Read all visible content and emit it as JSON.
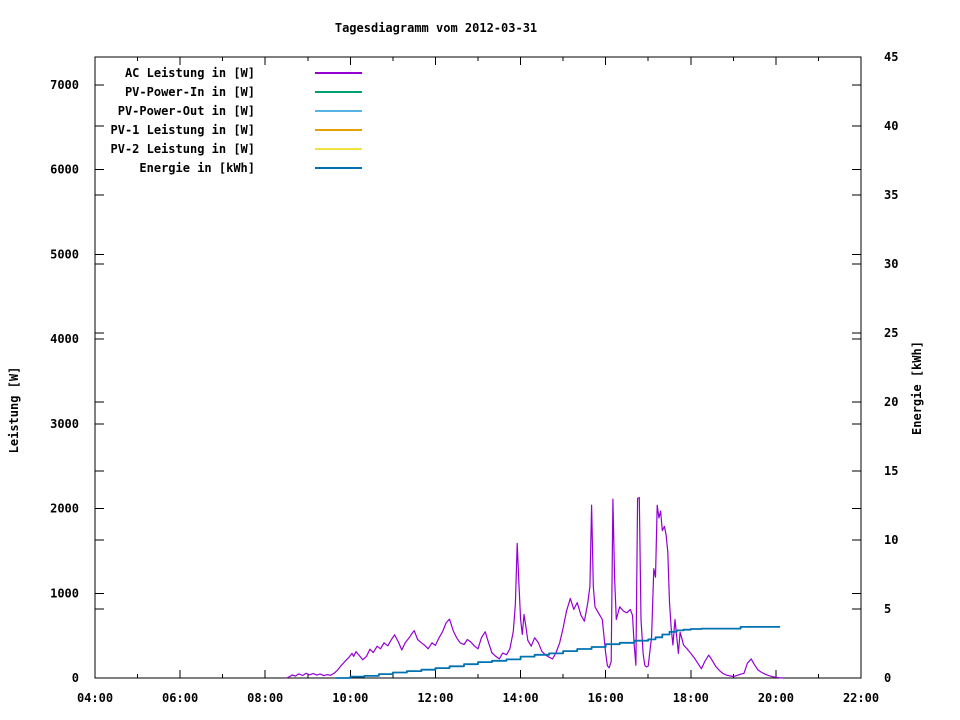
{
  "chart_data": {
    "type": "line",
    "title": "Tagesdiagramm vom 2012-03-31",
    "grid": false,
    "legend_position": "top-left-inside",
    "x_axis": {
      "label": "",
      "range_hours": [
        4,
        22
      ],
      "major_tick_hours": [
        4,
        6,
        8,
        10,
        12,
        14,
        16,
        18,
        20,
        22
      ],
      "major_tick_labels": [
        "04:00",
        "06:00",
        "08:00",
        "10:00",
        "12:00",
        "14:00",
        "16:00",
        "18:00",
        "20:00",
        "22:00"
      ],
      "minor_tick_hours": [
        5,
        7,
        9,
        11,
        13,
        15,
        17,
        19,
        21
      ]
    },
    "y1_axis": {
      "label": "Leistung [W]",
      "range": [
        0,
        7330
      ],
      "tick_values": [
        0,
        1000,
        2000,
        3000,
        4000,
        5000,
        6000,
        7000
      ],
      "tick_labels": [
        "0",
        "1000",
        "2000",
        "3000",
        "4000",
        "5000",
        "6000",
        "7000"
      ]
    },
    "y2_axis": {
      "label": "Energie [kWh]",
      "range": [
        0,
        45
      ],
      "tick_values": [
        0,
        5,
        10,
        15,
        20,
        25,
        30,
        35,
        40,
        45
      ],
      "tick_labels": [
        "0",
        "5",
        "10",
        "15",
        "20",
        "25",
        "30",
        "35",
        "40",
        "45"
      ]
    },
    "series": [
      {
        "name": "AC Leistung in [W]",
        "color": "#9400d3",
        "axis": "y1",
        "style": "line",
        "width": 1.2,
        "points": [
          [
            8.5,
            0
          ],
          [
            8.58,
            18
          ],
          [
            8.63,
            35
          ],
          [
            8.71,
            22
          ],
          [
            8.79,
            48
          ],
          [
            8.88,
            30
          ],
          [
            8.96,
            55
          ],
          [
            9.04,
            38
          ],
          [
            9.13,
            52
          ],
          [
            9.21,
            34
          ],
          [
            9.29,
            46
          ],
          [
            9.38,
            28
          ],
          [
            9.46,
            40
          ],
          [
            9.54,
            32
          ],
          [
            9.63,
            60
          ],
          [
            9.71,
            100
          ],
          [
            9.79,
            150
          ],
          [
            9.88,
            200
          ],
          [
            9.96,
            240
          ],
          [
            10.04,
            290
          ],
          [
            10.08,
            255
          ],
          [
            10.13,
            310
          ],
          [
            10.21,
            265
          ],
          [
            10.29,
            215
          ],
          [
            10.38,
            255
          ],
          [
            10.46,
            340
          ],
          [
            10.54,
            300
          ],
          [
            10.63,
            375
          ],
          [
            10.71,
            345
          ],
          [
            10.79,
            415
          ],
          [
            10.88,
            380
          ],
          [
            10.96,
            450
          ],
          [
            11.04,
            510
          ],
          [
            11.13,
            425
          ],
          [
            11.21,
            330
          ],
          [
            11.29,
            415
          ],
          [
            11.38,
            475
          ],
          [
            11.46,
            535
          ],
          [
            11.5,
            560
          ],
          [
            11.58,
            455
          ],
          [
            11.67,
            415
          ],
          [
            11.75,
            385
          ],
          [
            11.83,
            345
          ],
          [
            11.92,
            415
          ],
          [
            12,
            385
          ],
          [
            12.08,
            470
          ],
          [
            12.17,
            550
          ],
          [
            12.25,
            650
          ],
          [
            12.33,
            695
          ],
          [
            12.42,
            555
          ],
          [
            12.5,
            475
          ],
          [
            12.58,
            415
          ],
          [
            12.67,
            395
          ],
          [
            12.75,
            455
          ],
          [
            12.83,
            425
          ],
          [
            12.92,
            375
          ],
          [
            13,
            345
          ],
          [
            13.08,
            475
          ],
          [
            13.17,
            545
          ],
          [
            13.25,
            415
          ],
          [
            13.33,
            295
          ],
          [
            13.42,
            255
          ],
          [
            13.5,
            225
          ],
          [
            13.58,
            295
          ],
          [
            13.67,
            275
          ],
          [
            13.75,
            345
          ],
          [
            13.83,
            550
          ],
          [
            13.88,
            880
          ],
          [
            13.92,
            1590
          ],
          [
            13.96,
            1120
          ],
          [
            14,
            690
          ],
          [
            14.04,
            515
          ],
          [
            14.08,
            750
          ],
          [
            14.13,
            590
          ],
          [
            14.17,
            445
          ],
          [
            14.25,
            375
          ],
          [
            14.33,
            475
          ],
          [
            14.42,
            415
          ],
          [
            14.5,
            315
          ],
          [
            14.58,
            275
          ],
          [
            14.67,
            245
          ],
          [
            14.75,
            225
          ],
          [
            14.83,
            295
          ],
          [
            14.92,
            415
          ],
          [
            15,
            590
          ],
          [
            15.08,
            790
          ],
          [
            15.17,
            940
          ],
          [
            15.25,
            810
          ],
          [
            15.33,
            890
          ],
          [
            15.42,
            740
          ],
          [
            15.5,
            670
          ],
          [
            15.58,
            890
          ],
          [
            15.63,
            1080
          ],
          [
            15.67,
            2040
          ],
          [
            15.71,
            1080
          ],
          [
            15.75,
            840
          ],
          [
            15.83,
            770
          ],
          [
            15.92,
            690
          ],
          [
            16,
            290
          ],
          [
            16.04,
            145
          ],
          [
            16.08,
            120
          ],
          [
            16.13,
            195
          ],
          [
            16.17,
            2110
          ],
          [
            16.21,
            1180
          ],
          [
            16.25,
            690
          ],
          [
            16.33,
            840
          ],
          [
            16.42,
            790
          ],
          [
            16.5,
            770
          ],
          [
            16.58,
            810
          ],
          [
            16.63,
            740
          ],
          [
            16.67,
            390
          ],
          [
            16.71,
            150
          ],
          [
            16.75,
            2120
          ],
          [
            16.79,
            2130
          ],
          [
            16.83,
            690
          ],
          [
            16.88,
            290
          ],
          [
            16.92,
            150
          ],
          [
            16.96,
            130
          ],
          [
            17,
            140
          ],
          [
            17.08,
            490
          ],
          [
            17.13,
            1290
          ],
          [
            17.17,
            1190
          ],
          [
            17.21,
            2040
          ],
          [
            17.25,
            1890
          ],
          [
            17.29,
            1970
          ],
          [
            17.33,
            1740
          ],
          [
            17.38,
            1790
          ],
          [
            17.42,
            1690
          ],
          [
            17.46,
            1490
          ],
          [
            17.5,
            890
          ],
          [
            17.54,
            590
          ],
          [
            17.58,
            390
          ],
          [
            17.63,
            690
          ],
          [
            17.67,
            490
          ],
          [
            17.71,
            290
          ],
          [
            17.75,
            540
          ],
          [
            17.79,
            470
          ],
          [
            17.83,
            390
          ],
          [
            17.92,
            340
          ],
          [
            18,
            290
          ],
          [
            18.08,
            240
          ],
          [
            18.17,
            170
          ],
          [
            18.25,
            110
          ],
          [
            18.33,
            195
          ],
          [
            18.42,
            270
          ],
          [
            18.5,
            210
          ],
          [
            18.58,
            140
          ],
          [
            18.67,
            90
          ],
          [
            18.75,
            55
          ],
          [
            18.83,
            35
          ],
          [
            18.92,
            25
          ],
          [
            19,
            18
          ],
          [
            19.08,
            28
          ],
          [
            19.17,
            45
          ],
          [
            19.25,
            55
          ],
          [
            19.33,
            175
          ],
          [
            19.42,
            225
          ],
          [
            19.5,
            155
          ],
          [
            19.58,
            95
          ],
          [
            19.67,
            65
          ],
          [
            19.75,
            45
          ],
          [
            19.83,
            28
          ],
          [
            19.92,
            15
          ],
          [
            20,
            8
          ],
          [
            20.08,
            4
          ],
          [
            20.17,
            0
          ]
        ]
      },
      {
        "name": "PV-Power-In in [W]",
        "color": "#009e73",
        "axis": "y1",
        "style": "line",
        "width": 1.2,
        "points": []
      },
      {
        "name": "PV-Power-Out in [W]",
        "color": "#56b4e9",
        "axis": "y1",
        "style": "line",
        "width": 1.2,
        "points": []
      },
      {
        "name": "PV-1 Leistung in [W]",
        "color": "#e69f00",
        "axis": "y1",
        "style": "line",
        "width": 1.2,
        "points": []
      },
      {
        "name": "PV-2 Leistung in [W]",
        "color": "#f0e442",
        "axis": "y1",
        "style": "line",
        "width": 1.2,
        "points": []
      },
      {
        "name": "Energie in [kWh]",
        "color": "#0072b2",
        "axis": "y2",
        "style": "steps",
        "width": 1.8,
        "points": [
          [
            9.67,
            0
          ],
          [
            10,
            0.1
          ],
          [
            10.33,
            0.15
          ],
          [
            10.67,
            0.28
          ],
          [
            11,
            0.4
          ],
          [
            11.33,
            0.5
          ],
          [
            11.67,
            0.6
          ],
          [
            12,
            0.72
          ],
          [
            12.33,
            0.85
          ],
          [
            12.67,
            1.0
          ],
          [
            13,
            1.15
          ],
          [
            13.33,
            1.25
          ],
          [
            13.67,
            1.35
          ],
          [
            14,
            1.55
          ],
          [
            14.33,
            1.68
          ],
          [
            14.67,
            1.78
          ],
          [
            15,
            1.95
          ],
          [
            15.33,
            2.1
          ],
          [
            15.67,
            2.25
          ],
          [
            16,
            2.45
          ],
          [
            16.33,
            2.55
          ],
          [
            16.67,
            2.7
          ],
          [
            17,
            2.8
          ],
          [
            17.17,
            2.95
          ],
          [
            17.33,
            3.15
          ],
          [
            17.5,
            3.35
          ],
          [
            17.67,
            3.45
          ],
          [
            17.83,
            3.5
          ],
          [
            18,
            3.55
          ],
          [
            18.25,
            3.58
          ],
          [
            19.1,
            3.58
          ],
          [
            19.17,
            3.7
          ],
          [
            20.1,
            3.7
          ]
        ]
      }
    ]
  }
}
